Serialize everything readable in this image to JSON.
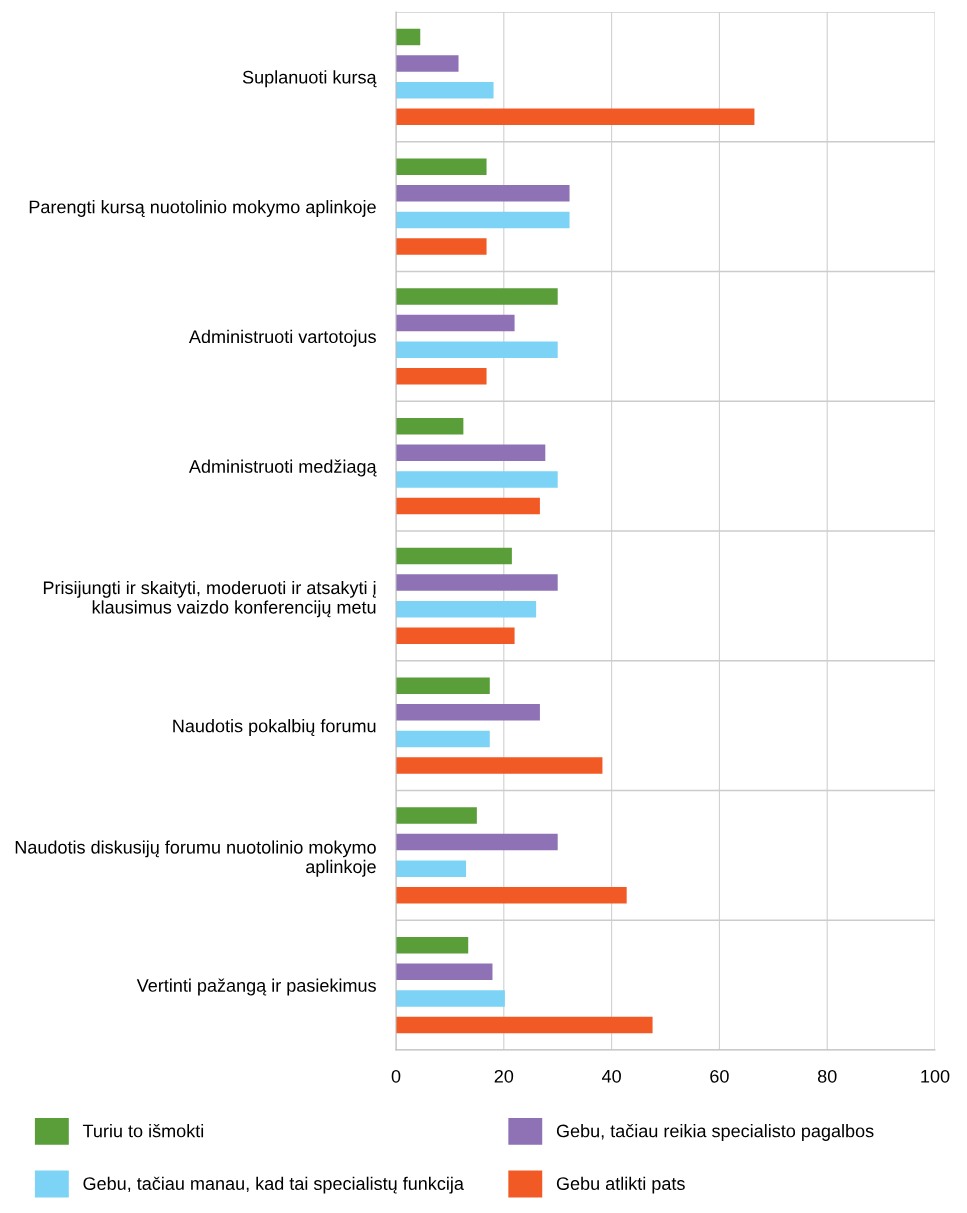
{
  "chart_data": {
    "type": "bar",
    "orientation": "horizontal",
    "categories": [
      "Suplanuoti kursą",
      "Parengti kursą nuotolinio mokymo aplinkoje",
      "Administruoti vartotojus",
      "Administruoti medžiagą",
      "Prisijungti ir skaityti, moderuoti ir atsakyti į\nklausimus vaizdo konferencijų metu",
      "Naudotis pokalbių forumu",
      "Naudotis diskusijų forumu nuotolinio mokymo\naplinkoje",
      "Vertinti pažangą ir pasiekimus"
    ],
    "series": [
      {
        "name": "Turiu to išmokti",
        "color": "#5a9e3a",
        "values": [
          4.5,
          16.8,
          30,
          12.5,
          21.5,
          17.4,
          15,
          13.4
        ]
      },
      {
        "name": "Gebu, tačiau reikia specialisto pagalbos",
        "color": "#8e72b5",
        "values": [
          11.6,
          32.2,
          22,
          27.7,
          30,
          26.7,
          30,
          17.9
        ]
      },
      {
        "name": "Gebu, tačiau manau, kad tai specialistų funkcija",
        "color": "#7dd3f5",
        "values": [
          18.1,
          32.2,
          30,
          30,
          26,
          17.4,
          13,
          20.2
        ]
      },
      {
        "name": "Gebu atlikti pats",
        "color": "#f15a24",
        "values": [
          66.5,
          16.8,
          16.8,
          26.7,
          22,
          38.3,
          42.8,
          47.6
        ]
      }
    ],
    "xlim": [
      0,
      100
    ],
    "xticks": [
      0,
      20,
      40,
      60,
      80,
      100
    ],
    "grid": "x",
    "legend": "bottom"
  }
}
